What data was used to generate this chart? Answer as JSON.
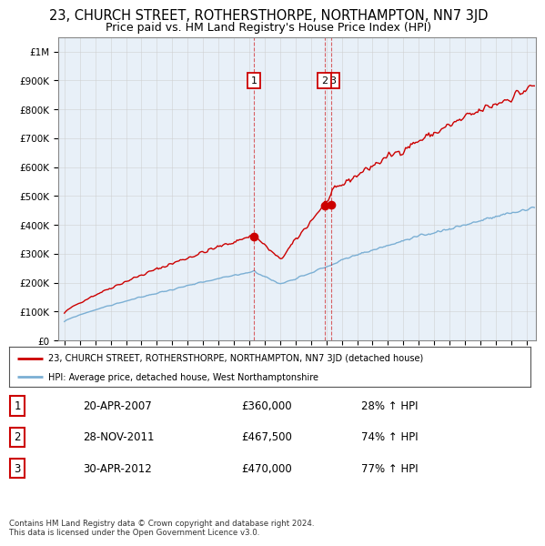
{
  "title": "23, CHURCH STREET, ROTHERSTHORPE, NORTHAMPTON, NN7 3JD",
  "subtitle": "Price paid vs. HM Land Registry's House Price Index (HPI)",
  "title_fontsize": 10.5,
  "subtitle_fontsize": 9,
  "ylim": [
    0,
    1050000
  ],
  "yticks": [
    0,
    100000,
    200000,
    300000,
    400000,
    500000,
    600000,
    700000,
    800000,
    900000,
    1000000
  ],
  "ytick_labels": [
    "£0",
    "£100K",
    "£200K",
    "£300K",
    "£400K",
    "£500K",
    "£600K",
    "£700K",
    "£800K",
    "£900K",
    "£1M"
  ],
  "sale_year_1": 2007.3,
  "sale_price_1": 360000,
  "sale_year_2": 2011.92,
  "sale_price_2": 467500,
  "sale_year_3": 2012.33,
  "sale_price_3": 470000,
  "red_color": "#cc0000",
  "blue_color": "#7bafd4",
  "chart_bg": "#e8f0f8",
  "legend_line1": "23, CHURCH STREET, ROTHERSTHORPE, NORTHAMPTON, NN7 3JD (detached house)",
  "legend_line2": "HPI: Average price, detached house, West Northamptonshire",
  "table_rows": [
    [
      "1",
      "20-APR-2007",
      "£360,000",
      "28% ↑ HPI"
    ],
    [
      "2",
      "28-NOV-2011",
      "£467,500",
      "74% ↑ HPI"
    ],
    [
      "3",
      "30-APR-2012",
      "£470,000",
      "77% ↑ HPI"
    ]
  ],
  "footer_text": "Contains HM Land Registry data © Crown copyright and database right 2024.\nThis data is licensed under the Open Government Licence v3.0.",
  "bg_color": "#ffffff",
  "grid_color": "#cccccc"
}
